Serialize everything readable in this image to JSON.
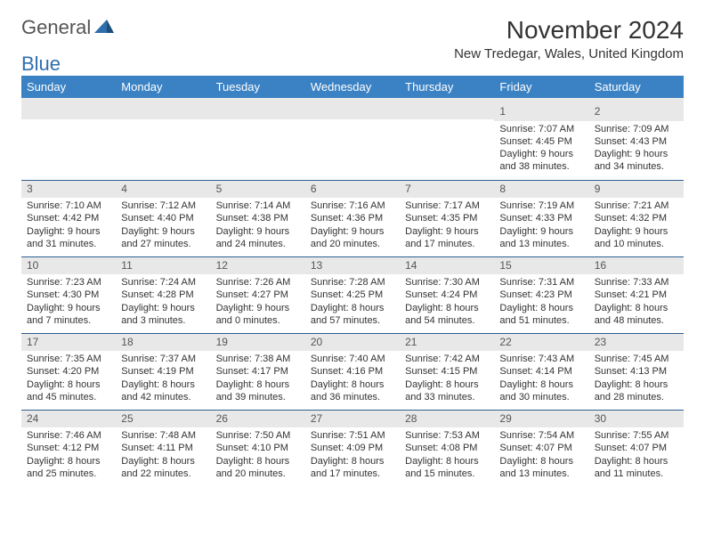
{
  "logo": {
    "text1": "General",
    "text2": "Blue"
  },
  "title": "November 2024",
  "location": "New Tredegar, Wales, United Kingdom",
  "colors": {
    "header_bg": "#3b82c4",
    "header_text": "#ffffff",
    "daynum_bg": "#e8e8e8",
    "border": "#2f5f8f",
    "logo_blue": "#2f6fad",
    "text": "#333333"
  },
  "day_headers": [
    "Sunday",
    "Monday",
    "Tuesday",
    "Wednesday",
    "Thursday",
    "Friday",
    "Saturday"
  ],
  "weeks": [
    [
      {
        "n": "",
        "lines": [
          "",
          "",
          "",
          ""
        ]
      },
      {
        "n": "",
        "lines": [
          "",
          "",
          "",
          ""
        ]
      },
      {
        "n": "",
        "lines": [
          "",
          "",
          "",
          ""
        ]
      },
      {
        "n": "",
        "lines": [
          "",
          "",
          "",
          ""
        ]
      },
      {
        "n": "",
        "lines": [
          "",
          "",
          "",
          ""
        ]
      },
      {
        "n": "1",
        "lines": [
          "Sunrise: 7:07 AM",
          "Sunset: 4:45 PM",
          "Daylight: 9 hours",
          "and 38 minutes."
        ]
      },
      {
        "n": "2",
        "lines": [
          "Sunrise: 7:09 AM",
          "Sunset: 4:43 PM",
          "Daylight: 9 hours",
          "and 34 minutes."
        ]
      }
    ],
    [
      {
        "n": "3",
        "lines": [
          "Sunrise: 7:10 AM",
          "Sunset: 4:42 PM",
          "Daylight: 9 hours",
          "and 31 minutes."
        ]
      },
      {
        "n": "4",
        "lines": [
          "Sunrise: 7:12 AM",
          "Sunset: 4:40 PM",
          "Daylight: 9 hours",
          "and 27 minutes."
        ]
      },
      {
        "n": "5",
        "lines": [
          "Sunrise: 7:14 AM",
          "Sunset: 4:38 PM",
          "Daylight: 9 hours",
          "and 24 minutes."
        ]
      },
      {
        "n": "6",
        "lines": [
          "Sunrise: 7:16 AM",
          "Sunset: 4:36 PM",
          "Daylight: 9 hours",
          "and 20 minutes."
        ]
      },
      {
        "n": "7",
        "lines": [
          "Sunrise: 7:17 AM",
          "Sunset: 4:35 PM",
          "Daylight: 9 hours",
          "and 17 minutes."
        ]
      },
      {
        "n": "8",
        "lines": [
          "Sunrise: 7:19 AM",
          "Sunset: 4:33 PM",
          "Daylight: 9 hours",
          "and 13 minutes."
        ]
      },
      {
        "n": "9",
        "lines": [
          "Sunrise: 7:21 AM",
          "Sunset: 4:32 PM",
          "Daylight: 9 hours",
          "and 10 minutes."
        ]
      }
    ],
    [
      {
        "n": "10",
        "lines": [
          "Sunrise: 7:23 AM",
          "Sunset: 4:30 PM",
          "Daylight: 9 hours",
          "and 7 minutes."
        ]
      },
      {
        "n": "11",
        "lines": [
          "Sunrise: 7:24 AM",
          "Sunset: 4:28 PM",
          "Daylight: 9 hours",
          "and 3 minutes."
        ]
      },
      {
        "n": "12",
        "lines": [
          "Sunrise: 7:26 AM",
          "Sunset: 4:27 PM",
          "Daylight: 9 hours",
          "and 0 minutes."
        ]
      },
      {
        "n": "13",
        "lines": [
          "Sunrise: 7:28 AM",
          "Sunset: 4:25 PM",
          "Daylight: 8 hours",
          "and 57 minutes."
        ]
      },
      {
        "n": "14",
        "lines": [
          "Sunrise: 7:30 AM",
          "Sunset: 4:24 PM",
          "Daylight: 8 hours",
          "and 54 minutes."
        ]
      },
      {
        "n": "15",
        "lines": [
          "Sunrise: 7:31 AM",
          "Sunset: 4:23 PM",
          "Daylight: 8 hours",
          "and 51 minutes."
        ]
      },
      {
        "n": "16",
        "lines": [
          "Sunrise: 7:33 AM",
          "Sunset: 4:21 PM",
          "Daylight: 8 hours",
          "and 48 minutes."
        ]
      }
    ],
    [
      {
        "n": "17",
        "lines": [
          "Sunrise: 7:35 AM",
          "Sunset: 4:20 PM",
          "Daylight: 8 hours",
          "and 45 minutes."
        ]
      },
      {
        "n": "18",
        "lines": [
          "Sunrise: 7:37 AM",
          "Sunset: 4:19 PM",
          "Daylight: 8 hours",
          "and 42 minutes."
        ]
      },
      {
        "n": "19",
        "lines": [
          "Sunrise: 7:38 AM",
          "Sunset: 4:17 PM",
          "Daylight: 8 hours",
          "and 39 minutes."
        ]
      },
      {
        "n": "20",
        "lines": [
          "Sunrise: 7:40 AM",
          "Sunset: 4:16 PM",
          "Daylight: 8 hours",
          "and 36 minutes."
        ]
      },
      {
        "n": "21",
        "lines": [
          "Sunrise: 7:42 AM",
          "Sunset: 4:15 PM",
          "Daylight: 8 hours",
          "and 33 minutes."
        ]
      },
      {
        "n": "22",
        "lines": [
          "Sunrise: 7:43 AM",
          "Sunset: 4:14 PM",
          "Daylight: 8 hours",
          "and 30 minutes."
        ]
      },
      {
        "n": "23",
        "lines": [
          "Sunrise: 7:45 AM",
          "Sunset: 4:13 PM",
          "Daylight: 8 hours",
          "and 28 minutes."
        ]
      }
    ],
    [
      {
        "n": "24",
        "lines": [
          "Sunrise: 7:46 AM",
          "Sunset: 4:12 PM",
          "Daylight: 8 hours",
          "and 25 minutes."
        ]
      },
      {
        "n": "25",
        "lines": [
          "Sunrise: 7:48 AM",
          "Sunset: 4:11 PM",
          "Daylight: 8 hours",
          "and 22 minutes."
        ]
      },
      {
        "n": "26",
        "lines": [
          "Sunrise: 7:50 AM",
          "Sunset: 4:10 PM",
          "Daylight: 8 hours",
          "and 20 minutes."
        ]
      },
      {
        "n": "27",
        "lines": [
          "Sunrise: 7:51 AM",
          "Sunset: 4:09 PM",
          "Daylight: 8 hours",
          "and 17 minutes."
        ]
      },
      {
        "n": "28",
        "lines": [
          "Sunrise: 7:53 AM",
          "Sunset: 4:08 PM",
          "Daylight: 8 hours",
          "and 15 minutes."
        ]
      },
      {
        "n": "29",
        "lines": [
          "Sunrise: 7:54 AM",
          "Sunset: 4:07 PM",
          "Daylight: 8 hours",
          "and 13 minutes."
        ]
      },
      {
        "n": "30",
        "lines": [
          "Sunrise: 7:55 AM",
          "Sunset: 4:07 PM",
          "Daylight: 8 hours",
          "and 11 minutes."
        ]
      }
    ]
  ]
}
